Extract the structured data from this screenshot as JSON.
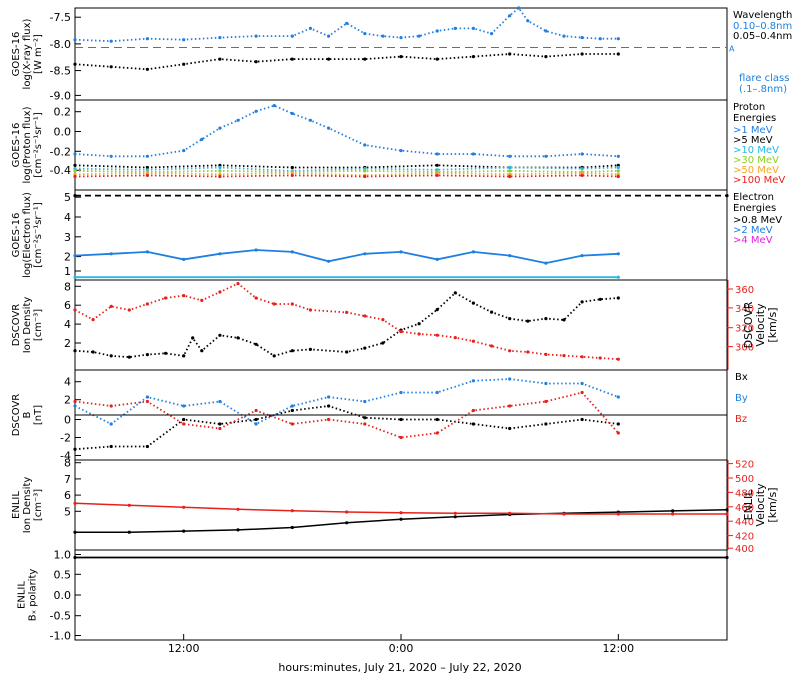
{
  "xaxis": {
    "label": "hours:minutes, July 21, 2020 – July 22, 2020",
    "ticks": [
      "12:00",
      "0:00",
      "12:00"
    ],
    "tick_hours": [
      12,
      24,
      36
    ]
  },
  "colors": {
    "black": "#000000",
    "blue": "#1f7fe0",
    "cyan": "#27b8e6",
    "green": "#8fcf1f",
    "orange": "#f5a623",
    "red": "#e8201c",
    "magenta": "#e020e0"
  },
  "panels": [
    {
      "key": "xray",
      "ylabel": [
        "GOES-16",
        "log(X-ray flux)",
        "[W m⁻²]"
      ],
      "yticks": [
        "-7.5",
        "-8.0",
        "-8.5",
        "-9.0"
      ],
      "legend": {
        "title": "Wavelength",
        "items": [
          {
            "text": "0.10–0.8nm",
            "color": "#1f7fe0"
          },
          {
            "text": "0.05–0.4nm",
            "color": "#000000"
          }
        ],
        "extra": [
          {
            "text": "flare class",
            "color": "#1f7fe0"
          },
          {
            "text": "(.1–.8nm)",
            "color": "#1f7fe0"
          }
        ],
        "marker": "A"
      }
    },
    {
      "key": "proton",
      "ylabel": [
        "GOES-16",
        "log(Proton flux)",
        "[cm⁻²s⁻¹sr⁻¹]"
      ],
      "yticks": [
        "0.2",
        "0.0",
        "-0.2",
        "-0.4"
      ],
      "legend": {
        "title": "Proton",
        "title2": "Energies",
        "items": [
          {
            "text": ">1 MeV",
            "color": "#1f7fe0"
          },
          {
            "text": ">5 MeV",
            "color": "#000000"
          },
          {
            "text": ">10 MeV",
            "color": "#27b8e6"
          },
          {
            "text": ">30 MeV",
            "color": "#8fcf1f"
          },
          {
            "text": ">50 MeV",
            "color": "#f5a623"
          },
          {
            "text": ">100 MeV",
            "color": "#e8201c"
          }
        ]
      }
    },
    {
      "key": "electron",
      "ylabel": [
        "GOES-16",
        "log(Electron flux)",
        "[cm⁻²s⁻¹sr⁻¹]"
      ],
      "yticks": [
        "5",
        "4",
        "3",
        "2",
        "1"
      ],
      "legend": {
        "title": "Electron",
        "title2": "Energies",
        "items": [
          {
            "text": ">0.8 MeV",
            "color": "#000000"
          },
          {
            "text": ">2 MeV",
            "color": "#1f7fe0"
          },
          {
            "text": ">4 MeV",
            "color": "#e020e0"
          }
        ]
      }
    },
    {
      "key": "dscovr_plasma",
      "ylabel": [
        "DSCOVR",
        "Ion Density",
        "[cm⁻³]"
      ],
      "yticks": [
        "8",
        "6",
        "4",
        "2"
      ],
      "right_label": [
        "DSCOVR",
        "Velocity",
        "[km/s]"
      ],
      "right_ticks": [
        "360",
        "340",
        "320",
        "300"
      ]
    },
    {
      "key": "dscovr_mag",
      "ylabel": [
        "DSCOVR",
        "B",
        "[nT]"
      ],
      "yticks": [
        "4",
        "2",
        "0",
        "-2",
        "-4"
      ],
      "legend": {
        "items": [
          {
            "text": "Bx",
            "color": "#000000"
          },
          {
            "text": "By",
            "color": "#1f7fe0"
          },
          {
            "text": "Bz",
            "color": "#e8201c"
          }
        ]
      }
    },
    {
      "key": "enlil_plasma",
      "ylabel": [
        "ENLIL",
        "Ion Density",
        "[cm⁻³]"
      ],
      "yticks": [
        "8",
        "7",
        "6",
        "5"
      ],
      "right_label": [
        "ENLIL",
        "Velocity",
        "[km/s]"
      ],
      "right_ticks": [
        "520",
        "500",
        "480",
        "460",
        "440",
        "420",
        "400"
      ]
    },
    {
      "key": "enlil_polarity",
      "ylabel": [
        "ENLIL",
        "Bₓ polarity"
      ],
      "yticks": [
        "1.0",
        "0.5",
        "0.0",
        "-0.5",
        "-1.0"
      ]
    }
  ],
  "chart_data": [
    {
      "type": "scatter",
      "title": "",
      "ylabel": "GOES-16 log(X-ray flux) [W m-2]",
      "xlim": [
        6,
        42
      ],
      "ylim": [
        -9.1,
        -7.3
      ],
      "series": [
        {
          "name": "0.10–0.8nm",
          "color": "#1f7fe0",
          "x": [
            6,
            8,
            10,
            12,
            14,
            16,
            18,
            19,
            20,
            21,
            22,
            23,
            24,
            25,
            26,
            27,
            28,
            29,
            30,
            30.5,
            31,
            32,
            33,
            34,
            35,
            36
          ],
          "y": [
            -7.92,
            -7.95,
            -7.9,
            -7.92,
            -7.88,
            -7.85,
            -7.85,
            -7.7,
            -7.85,
            -7.6,
            -7.8,
            -7.85,
            -7.88,
            -7.85,
            -7.75,
            -7.7,
            -7.7,
            -7.8,
            -7.45,
            -7.3,
            -7.55,
            -7.75,
            -7.85,
            -7.88,
            -7.9,
            -7.9
          ]
        },
        {
          "name": "0.05–0.4nm",
          "color": "#000000",
          "x": [
            6,
            8,
            10,
            12,
            14,
            16,
            18,
            20,
            22,
            24,
            26,
            28,
            30,
            32,
            34,
            36
          ],
          "y": [
            -8.4,
            -8.45,
            -8.5,
            -8.4,
            -8.3,
            -8.35,
            -8.3,
            -8.3,
            -8.3,
            -8.25,
            -8.3,
            -8.25,
            -8.2,
            -8.25,
            -8.2,
            -8.2
          ]
        }
      ]
    },
    {
      "type": "scatter",
      "title": "",
      "ylabel": "GOES-16 log(Proton flux) [cm-2 s-1 sr-1]",
      "xlim": [
        6,
        42
      ],
      "ylim": [
        -0.5,
        0.3
      ],
      "series": [
        {
          "name": ">1 MeV",
          "color": "#1f7fe0",
          "x": [
            6,
            8,
            10,
            12,
            13,
            14,
            15,
            16,
            17,
            18,
            19,
            20,
            22,
            24,
            26,
            28,
            30,
            32,
            34,
            36
          ],
          "y": [
            -0.18,
            -0.2,
            -0.2,
            -0.15,
            -0.05,
            0.05,
            0.12,
            0.2,
            0.25,
            0.18,
            0.12,
            0.05,
            -0.1,
            -0.15,
            -0.18,
            -0.18,
            -0.2,
            -0.2,
            -0.18,
            -0.2
          ]
        },
        {
          "name": ">5 MeV",
          "color": "#000000",
          "x": [
            6,
            10,
            14,
            18,
            22,
            26,
            30,
            34,
            36
          ],
          "y": [
            -0.28,
            -0.3,
            -0.28,
            -0.3,
            -0.3,
            -0.28,
            -0.3,
            -0.3,
            -0.28
          ]
        },
        {
          "name": ">10 MeV",
          "color": "#27b8e6",
          "x": [
            6,
            10,
            14,
            18,
            22,
            26,
            30,
            34,
            36
          ],
          "y": [
            -0.31,
            -0.32,
            -0.3,
            -0.33,
            -0.31,
            -0.32,
            -0.3,
            -0.31,
            -0.3
          ]
        },
        {
          "name": ">30 MeV",
          "color": "#8fcf1f",
          "x": [
            6,
            10,
            14,
            18,
            22,
            26,
            30,
            34,
            36
          ],
          "y": [
            -0.33,
            -0.34,
            -0.33,
            -0.34,
            -0.33,
            -0.34,
            -0.33,
            -0.34,
            -0.33
          ]
        },
        {
          "name": ">50 MeV",
          "color": "#f5a623",
          "x": [
            6,
            10,
            14,
            18,
            22,
            26,
            30,
            34,
            36
          ],
          "y": [
            -0.36,
            -0.35,
            -0.36,
            -0.35,
            -0.37,
            -0.35,
            -0.36,
            -0.35,
            -0.36
          ]
        },
        {
          "name": ">100 MeV",
          "color": "#e8201c",
          "x": [
            6,
            10,
            14,
            18,
            22,
            26,
            30,
            34,
            36
          ],
          "y": [
            -0.38,
            -0.37,
            -0.38,
            -0.37,
            -0.38,
            -0.37,
            -0.38,
            -0.37,
            -0.38
          ]
        }
      ]
    },
    {
      "type": "scatter",
      "title": "",
      "ylabel": "GOES-16 log(Electron flux) [cm-2 s-1 sr-1]",
      "xlim": [
        6,
        42
      ],
      "ylim": [
        0.5,
        5.3
      ],
      "series": [
        {
          "name": ">0.8 MeV",
          "color": "#000000",
          "x": [
            6,
            42
          ],
          "y": [
            5.0,
            5.0
          ]
        },
        {
          "name": ">2 MeV",
          "color": "#1f7fe0",
          "x": [
            6,
            8,
            10,
            12,
            14,
            16,
            18,
            20,
            22,
            24,
            26,
            28,
            30,
            32,
            34,
            36
          ],
          "y": [
            1.8,
            1.9,
            2.0,
            1.6,
            1.9,
            2.1,
            2.0,
            1.5,
            1.9,
            2.0,
            1.6,
            2.0,
            1.8,
            1.4,
            1.8,
            1.9
          ]
        },
        {
          "name": ">2 MeV baseline",
          "color": "#27b8e6",
          "x": [
            6,
            36
          ],
          "y": [
            0.65,
            0.65
          ]
        }
      ]
    },
    {
      "type": "scatter",
      "title": "",
      "ylabel": "DSCOVR Ion Density [cm-3]",
      "y2label": "DSCOVR Velocity [km/s]",
      "xlim": [
        6,
        42
      ],
      "ylim": [
        1.5,
        8.5
      ],
      "y2lim": [
        290,
        365
      ],
      "series": [
        {
          "name": "Ion Density",
          "color": "#000000",
          "x": [
            6,
            7,
            8,
            9,
            10,
            11,
            12,
            12.5,
            13,
            14,
            15,
            16,
            17,
            18,
            19,
            21,
            22,
            23,
            24,
            25,
            26,
            27,
            28,
            29,
            30,
            31,
            32,
            33,
            34,
            35,
            36
          ],
          "y": [
            3.0,
            2.9,
            2.6,
            2.5,
            2.7,
            2.8,
            2.6,
            4.0,
            3.0,
            4.2,
            4.0,
            3.5,
            2.6,
            3.0,
            3.1,
            2.9,
            3.2,
            3.6,
            4.6,
            5.1,
            6.2,
            7.5,
            6.7,
            6.0,
            5.5,
            5.3,
            5.5,
            5.4,
            6.8,
            7.0,
            7.1
          ]
        },
        {
          "name": "Velocity",
          "color": "#e8201c",
          "axis": "y2",
          "x": [
            6,
            7,
            8,
            9,
            10,
            11,
            12,
            13,
            14,
            15,
            16,
            17,
            18,
            19,
            21,
            22,
            23,
            24,
            25,
            26,
            27,
            28,
            29,
            30,
            31,
            32,
            33,
            34,
            35,
            36
          ],
          "y": [
            340,
            332,
            343,
            340,
            345,
            350,
            352,
            348,
            355,
            362,
            350,
            345,
            345,
            340,
            338,
            335,
            332,
            322,
            320,
            319,
            317,
            314,
            310,
            306,
            305,
            303,
            302,
            301,
            300,
            299
          ]
        }
      ]
    },
    {
      "type": "scatter",
      "title": "",
      "ylabel": "DSCOVR B [nT]",
      "xlim": [
        6,
        42
      ],
      "ylim": [
        -5,
        5
      ],
      "series": [
        {
          "name": "Bx",
          "color": "#000000",
          "x": [
            6,
            8,
            10,
            12,
            14,
            16,
            18,
            20,
            22,
            24,
            26,
            28,
            30,
            32,
            34,
            36
          ],
          "y": [
            -3.8,
            -3.5,
            -3.5,
            -0.5,
            -1.0,
            -0.5,
            0.5,
            1.0,
            -0.3,
            -0.5,
            -0.5,
            -1.0,
            -1.5,
            -1.0,
            -0.5,
            -1.0
          ]
        },
        {
          "name": "By",
          "color": "#1f7fe0",
          "x": [
            6,
            8,
            10,
            12,
            14,
            16,
            18,
            20,
            22,
            24,
            26,
            28,
            30,
            32,
            34,
            36
          ],
          "y": [
            1.0,
            -1.0,
            2.0,
            1.0,
            1.5,
            -1.0,
            1.0,
            2.0,
            1.5,
            2.5,
            2.5,
            3.8,
            4.0,
            3.5,
            3.5,
            2.0
          ]
        },
        {
          "name": "Bz",
          "color": "#e8201c",
          "x": [
            6,
            8,
            10,
            12,
            14,
            16,
            18,
            20,
            22,
            24,
            26,
            28,
            30,
            32,
            34,
            36
          ],
          "y": [
            1.5,
            1.0,
            1.5,
            -1.0,
            -1.5,
            0.5,
            -1.0,
            -0.5,
            -1.0,
            -2.5,
            -2.0,
            0.5,
            1.0,
            1.5,
            2.5,
            -2.0
          ]
        }
      ]
    },
    {
      "type": "line",
      "title": "",
      "ylabel": "ENLIL Ion Density [cm-3]",
      "y2label": "ENLIL Velocity [km/s]",
      "xlim": [
        6,
        42
      ],
      "ylim": [
        4.2,
        8.0
      ],
      "y2lim": [
        390,
        525
      ],
      "series": [
        {
          "name": "Ion Density",
          "color": "#000000",
          "x": [
            6,
            9,
            12,
            15,
            18,
            21,
            24,
            27,
            30,
            33,
            36,
            39,
            42
          ],
          "y": [
            4.95,
            4.95,
            5.0,
            5.05,
            5.15,
            5.35,
            5.5,
            5.6,
            5.7,
            5.75,
            5.8,
            5.85,
            5.9
          ]
        },
        {
          "name": "Velocity",
          "color": "#e8201c",
          "axis": "y2",
          "x": [
            6,
            9,
            12,
            15,
            18,
            21,
            24,
            27,
            30,
            33,
            36,
            39,
            42
          ],
          "y": [
            460,
            457,
            454,
            451,
            449,
            447,
            446,
            445,
            445,
            444,
            444,
            444,
            444
          ]
        }
      ]
    },
    {
      "type": "line",
      "title": "",
      "ylabel": "ENLIL Bx polarity",
      "xlim": [
        6,
        42
      ],
      "ylim": [
        -1.2,
        1.2
      ],
      "series": [
        {
          "name": "Bx polarity",
          "color": "#000000",
          "x": [
            6,
            42
          ],
          "y": [
            1.0,
            1.0
          ]
        }
      ]
    }
  ]
}
